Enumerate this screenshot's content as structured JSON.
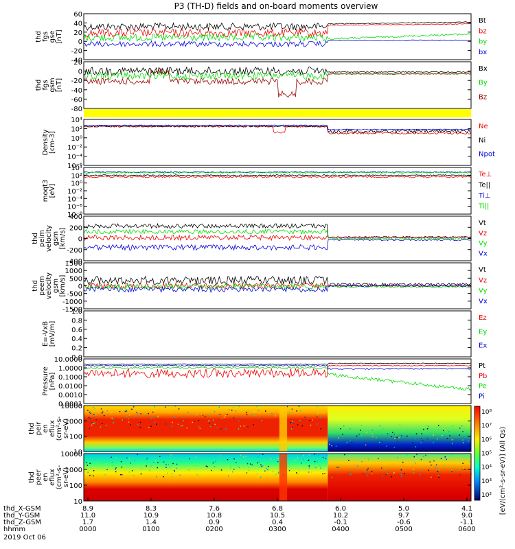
{
  "title": "P3 (TH-D) fields and on-board moments overview",
  "colors": {
    "black": "#000000",
    "red": "#ee0000",
    "green": "#00dd00",
    "blue": "#0000dd",
    "darkred": "#990000",
    "yellow": "#ffff00"
  },
  "chart_data": [
    {
      "id": "fgs_gse",
      "type": "line",
      "ylabel": [
        "thd",
        "fgs",
        "gse",
        "[nT]"
      ],
      "ticks": [
        "60",
        "40",
        "20",
        "0",
        "-20",
        "-40"
      ],
      "ylim": [
        -40,
        60
      ],
      "series": [
        {
          "name": "Bt",
          "color": "black"
        },
        {
          "name": "bz",
          "color": "red"
        },
        {
          "name": "by",
          "color": "green"
        },
        {
          "name": "bx",
          "color": "blue"
        }
      ]
    },
    {
      "id": "fgs_gsm",
      "type": "line",
      "ylabel": [
        "thd",
        "fgs",
        "gsm",
        "[nT]"
      ],
      "ticks": [
        "20",
        "0",
        "-20",
        "-40",
        "-60",
        "-80"
      ],
      "ylim": [
        -90,
        25
      ],
      "series": [
        {
          "name": "Bx",
          "color": "black"
        },
        {
          "name": "By",
          "color": "green"
        },
        {
          "name": "Bz",
          "color": "darkred"
        }
      ]
    },
    {
      "id": "density",
      "type": "line",
      "ylabel": [
        "Density",
        "[cm-3]"
      ],
      "ticks": [
        "10⁴",
        "10²",
        "10⁰",
        "10⁻²",
        "10⁻⁴",
        "10⁻⁶"
      ],
      "ylim": [
        "1e-6",
        "1e4"
      ],
      "yscale": "log",
      "series": [
        {
          "name": "Ne",
          "color": "red"
        },
        {
          "name": "Ni",
          "color": "black"
        },
        {
          "name": "Npot",
          "color": "blue"
        }
      ]
    },
    {
      "id": "temperature",
      "type": "line",
      "ylabel": [
        "moqt3",
        "[eV]"
      ],
      "ticks": [
        "10⁴",
        "10²",
        "10⁰",
        "10⁻²",
        "10⁻⁴",
        "10⁻⁶",
        "10⁻⁸"
      ],
      "ylim": [
        "1e-8",
        "1e4"
      ],
      "yscale": "log",
      "series": [
        {
          "name": "Te⊥",
          "color": "red"
        },
        {
          "name": "Te||",
          "color": "black"
        },
        {
          "name": "Ti⊥",
          "color": "blue"
        },
        {
          "name": "Ti||",
          "color": "green"
        }
      ]
    },
    {
      "id": "peim_velocity",
      "type": "line",
      "ylabel": [
        "thd",
        "peim",
        "velocity",
        "gsm",
        "[km/s]"
      ],
      "ticks": [
        "400",
        "200",
        "0",
        "-200",
        "-400"
      ],
      "ylim": [
        -400,
        400
      ],
      "series": [
        {
          "name": "Vt",
          "color": "black"
        },
        {
          "name": "Vz",
          "color": "red"
        },
        {
          "name": "Vy",
          "color": "green"
        },
        {
          "name": "Vx",
          "color": "blue"
        }
      ]
    },
    {
      "id": "peem_velocity",
      "type": "line",
      "ylabel": [
        "thd",
        "peem",
        "velocity",
        "gsm",
        "[km/s]"
      ],
      "ticks": [
        "1500",
        "1000",
        "500",
        "0",
        "-500",
        "-1000",
        "-1500"
      ],
      "ylim": [
        -1500,
        1500
      ],
      "series": [
        {
          "name": "Vt",
          "color": "black"
        },
        {
          "name": "Vz",
          "color": "red"
        },
        {
          "name": "Vy",
          "color": "green"
        },
        {
          "name": "Vx",
          "color": "blue"
        }
      ]
    },
    {
      "id": "efield",
      "type": "line",
      "ylabel": [
        "E=-VxB",
        "[mV/m]"
      ],
      "ticks": [
        "1.0",
        "0.8",
        "0.6",
        "0.4",
        "0.2",
        "0.0"
      ],
      "ylim": [
        0,
        1
      ],
      "series": [
        {
          "name": "Ez",
          "color": "red"
        },
        {
          "name": "Ey",
          "color": "green"
        },
        {
          "name": "Ex",
          "color": "blue"
        }
      ]
    },
    {
      "id": "pressure",
      "type": "line",
      "ylabel": [
        "Pressure",
        "[nPa]"
      ],
      "ticks": [
        "10.0000",
        "1.0000",
        "0.1000",
        "0.0100",
        "0.0010",
        "0.0001"
      ],
      "ylim": [
        "1e-4",
        "1e1"
      ],
      "yscale": "log",
      "series": [
        {
          "name": "Pt",
          "color": "black"
        },
        {
          "name": "Pb",
          "color": "red"
        },
        {
          "name": "Pe",
          "color": "green"
        },
        {
          "name": "Pi",
          "color": "blue"
        }
      ]
    },
    {
      "id": "peir_eflux",
      "type": "heatmap",
      "ylabel": [
        "thd",
        "peir",
        "en",
        "eflux",
        "(cm²-s-",
        "sr-eV)"
      ],
      "ticks": [
        "10000",
        "1000",
        "100",
        "10"
      ],
      "ylim": [
        5,
        30000
      ],
      "yscale": "log"
    },
    {
      "id": "peer_eflux",
      "type": "heatmap",
      "ylabel": [
        "thd",
        "peer",
        "en",
        "eflux",
        "(cm²-s-",
        "sr-eV)"
      ],
      "ticks": [
        "10000",
        "1000",
        "100",
        "10"
      ],
      "ylim": [
        5,
        30000
      ],
      "yscale": "log"
    }
  ],
  "colorbar": {
    "ticks": [
      "10⁸",
      "10⁷",
      "10⁶",
      "10⁵",
      "10⁴",
      "10³",
      "10²"
    ],
    "label": "[eV/(cm²-s-sr-eV)] (All Qs)"
  },
  "xaxis": {
    "rows": [
      {
        "label": "thd_X-GSM",
        "values": [
          "8.9",
          "8.3",
          "7.6",
          "6.8",
          "6.0",
          "5.0",
          "4.1"
        ]
      },
      {
        "label": "thd_Y-GSM",
        "values": [
          "11.0",
          "10.9",
          "10.8",
          "10.5",
          "10.2",
          "9.7",
          "9.0"
        ]
      },
      {
        "label": "thd_Z-GSM",
        "values": [
          "1.7",
          "1.4",
          "0.9",
          "0.4",
          "-0.1",
          "-0.6",
          "-1.1"
        ]
      },
      {
        "label": "hhmm",
        "values": [
          "0000",
          "0100",
          "0200",
          "0300",
          "0400",
          "0500",
          "0600"
        ]
      }
    ],
    "date": "2019 Oct 06"
  }
}
